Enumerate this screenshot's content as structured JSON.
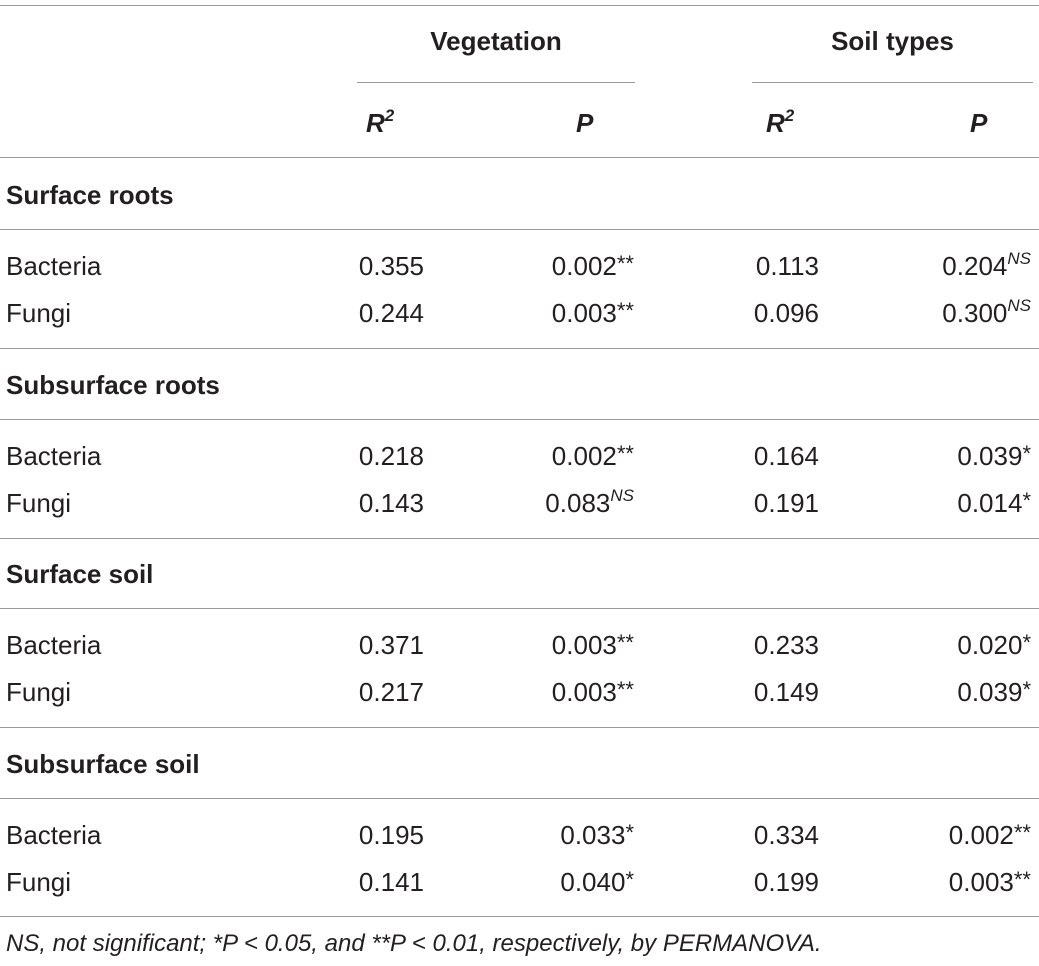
{
  "header": {
    "group1": "Vegetation",
    "group2": "Soil types",
    "col_r2_base": "R",
    "col_r2_sup": "2",
    "col_p": "P"
  },
  "sections": [
    {
      "title": "Surface roots",
      "rows": [
        {
          "label": "Bacteria",
          "veg_r2": "0.355",
          "veg_p": "0.002",
          "veg_p_mark": "**",
          "soil_r2": "0.113",
          "soil_p": "0.204",
          "soil_p_mark": "NS"
        },
        {
          "label": "Fungi",
          "veg_r2": "0.244",
          "veg_p": "0.003",
          "veg_p_mark": "**",
          "soil_r2": "0.096",
          "soil_p": "0.300",
          "soil_p_mark": "NS"
        }
      ]
    },
    {
      "title": "Subsurface roots",
      "rows": [
        {
          "label": "Bacteria",
          "veg_r2": "0.218",
          "veg_p": "0.002",
          "veg_p_mark": "**",
          "soil_r2": "0.164",
          "soil_p": "0.039",
          "soil_p_mark": "*"
        },
        {
          "label": "Fungi",
          "veg_r2": "0.143",
          "veg_p": "0.083",
          "veg_p_mark": "NS",
          "soil_r2": "0.191",
          "soil_p": "0.014",
          "soil_p_mark": "*"
        }
      ]
    },
    {
      "title": "Surface soil",
      "rows": [
        {
          "label": "Bacteria",
          "veg_r2": "0.371",
          "veg_p": "0.003",
          "veg_p_mark": "**",
          "soil_r2": "0.233",
          "soil_p": "0.020",
          "soil_p_mark": "*"
        },
        {
          "label": "Fungi",
          "veg_r2": "0.217",
          "veg_p": "0.003",
          "veg_p_mark": "**",
          "soil_r2": "0.149",
          "soil_p": "0.039",
          "soil_p_mark": "*"
        }
      ]
    },
    {
      "title": "Subsurface soil",
      "rows": [
        {
          "label": "Bacteria",
          "veg_r2": "0.195",
          "veg_p": "0.033",
          "veg_p_mark": "*",
          "soil_r2": "0.334",
          "soil_p": "0.002",
          "soil_p_mark": "**"
        },
        {
          "label": "Fungi",
          "veg_r2": "0.141",
          "veg_p": "0.040",
          "veg_p_mark": "*",
          "soil_r2": "0.199",
          "soil_p": "0.003",
          "soil_p_mark": "**"
        }
      ]
    }
  ],
  "footnote": "NS, not significant; *P < 0.05, and **P < 0.01, respectively, by PERMANOVA."
}
